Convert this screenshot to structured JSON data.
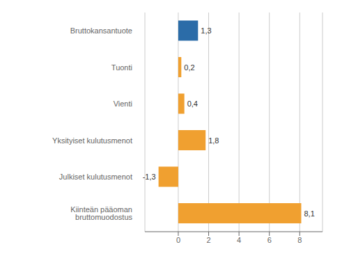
{
  "chart_data": {
    "type": "bar",
    "orientation": "horizontal",
    "categories": [
      "Kiinteän pääoman bruttomuodostus",
      "Julkiset kulutusmenot",
      "Yksityiset kulutusmenot",
      "Vienti",
      "Tuonti",
      "Bruttokansantuote"
    ],
    "values": [
      8.1,
      -1.3,
      1.8,
      0.4,
      0.2,
      1.3
    ],
    "value_labels": [
      "8,1",
      "-1,3",
      "1,8",
      "0,4",
      "0,2",
      "1,3"
    ],
    "colors": [
      "#f0a030",
      "#f0a030",
      "#f0a030",
      "#f0a030",
      "#f0a030",
      "#2b6ca8"
    ],
    "xlim": [
      -2.2,
      9.5
    ],
    "xticks": [
      0,
      2,
      4,
      6,
      8
    ],
    "grid": true,
    "data_labels": true
  }
}
